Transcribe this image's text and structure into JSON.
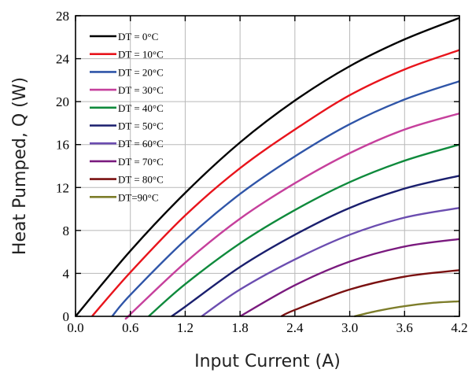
{
  "chart_data": {
    "type": "line",
    "title": "",
    "xlabel": "Input Current (A)",
    "ylabel": "Heat Pumped, Q (W)",
    "xlim": [
      0,
      4.2
    ],
    "ylim": [
      0,
      28
    ],
    "xticks": [
      "0.0",
      "0.6",
      "1.2",
      "1.8",
      "2.4",
      "3.0",
      "3.6",
      "4.2"
    ],
    "yticks": [
      "0",
      "4",
      "8",
      "12",
      "16",
      "20",
      "24",
      "28"
    ],
    "grid": true,
    "legend_position": "top-left",
    "series": [
      {
        "name": "DT = 0°C",
        "color": "#000000",
        "x": [
          0.0,
          0.6,
          1.2,
          1.8,
          2.4,
          3.0,
          3.6,
          4.2
        ],
        "y": [
          0.0,
          6.1,
          11.5,
          16.2,
          20.1,
          23.3,
          25.8,
          27.8
        ]
      },
      {
        "name": "DT = 10°C",
        "color": "#e8141c",
        "x": [
          0.18,
          0.6,
          1.2,
          1.8,
          2.4,
          3.0,
          3.6,
          4.2
        ],
        "y": [
          0.0,
          4.1,
          9.4,
          13.8,
          17.4,
          20.6,
          23.0,
          24.8
        ]
      },
      {
        "name": "DT = 20°C",
        "color": "#2f55a8",
        "x": [
          0.4,
          0.6,
          1.2,
          1.8,
          2.4,
          3.0,
          3.6,
          4.2
        ],
        "y": [
          0.0,
          2.0,
          7.1,
          11.4,
          14.9,
          17.9,
          20.2,
          21.9
        ]
      },
      {
        "name": "DT = 30°C",
        "color": "#c6409c",
        "x": [
          0.58,
          0.6,
          1.2,
          1.8,
          2.4,
          3.0,
          3.6,
          4.2
        ],
        "y": [
          0.0,
          0.2,
          5.0,
          9.1,
          12.4,
          15.2,
          17.4,
          18.9
        ]
      },
      {
        "name": "DT = 40°C",
        "color": "#0f8a3c",
        "x": [
          0.8,
          1.2,
          1.8,
          2.4,
          3.0,
          3.6,
          4.2
        ],
        "y": [
          0.0,
          3.0,
          6.8,
          9.9,
          12.5,
          14.5,
          16.0
        ]
      },
      {
        "name": "DT = 50°C",
        "color": "#1a1f6e",
        "x": [
          1.05,
          1.2,
          1.8,
          2.4,
          3.0,
          3.6,
          4.2
        ],
        "y": [
          0.0,
          0.9,
          4.6,
          7.6,
          10.1,
          11.9,
          13.1
        ]
      },
      {
        "name": "DT = 60°C",
        "color": "#6b4db0",
        "x": [
          1.38,
          1.8,
          2.4,
          3.0,
          3.6,
          4.2
        ],
        "y": [
          0.0,
          2.5,
          5.3,
          7.6,
          9.2,
          10.1
        ]
      },
      {
        "name": "DT = 70°C",
        "color": "#7a1a7e",
        "x": [
          1.8,
          2.4,
          3.0,
          3.6,
          4.2
        ],
        "y": [
          0.0,
          2.9,
          5.1,
          6.5,
          7.2
        ]
      },
      {
        "name": "DT = 80°C",
        "color": "#7a1010",
        "x": [
          2.25,
          2.4,
          3.0,
          3.6,
          4.2
        ],
        "y": [
          0.0,
          0.6,
          2.5,
          3.7,
          4.3
        ]
      },
      {
        "name": "DT=90°C",
        "color": "#7d7d2a",
        "x": [
          3.05,
          3.3,
          3.6,
          3.9,
          4.2
        ],
        "y": [
          0.0,
          0.5,
          0.95,
          1.25,
          1.4
        ]
      }
    ]
  }
}
